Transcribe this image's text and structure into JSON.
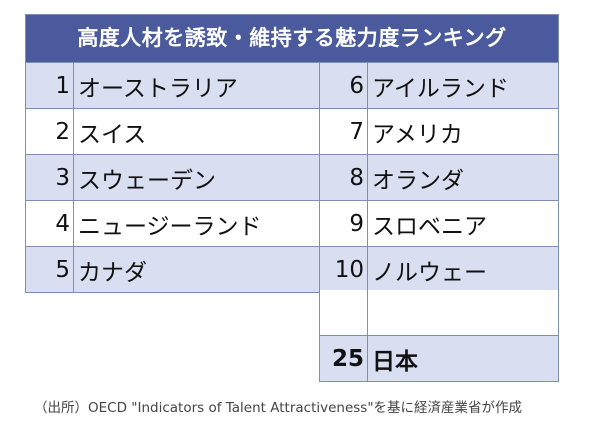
{
  "title": "高度人材を誘致・維持する魅力度ランキング",
  "rows": [
    {
      "left_rank": "1",
      "left_country": "オーストラリア",
      "right_rank": "6",
      "right_country": "アイルランド"
    },
    {
      "left_rank": "2",
      "left_country": "スイス",
      "right_rank": "7",
      "right_country": "アメリカ"
    },
    {
      "left_rank": "3",
      "left_country": "スウェーデン",
      "right_rank": "8",
      "right_country": "オランダ"
    },
    {
      "left_rank": "4",
      "left_country": "ニュージーランド",
      "right_rank": "9",
      "right_country": "スロベニア"
    },
    {
      "left_rank": "5",
      "left_country": "カナダ",
      "right_rank": "10",
      "right_country": "ノルウェー"
    }
  ],
  "japan": {
    "rank": "25",
    "country": "日本"
  },
  "source": "（出所）OECD \"Indicators of Talent Attractiveness\"を基に経済産業省が作成",
  "colors": {
    "header": "#4a5a9c",
    "shade": "#d9dff0",
    "border": "#7f8fb3"
  }
}
